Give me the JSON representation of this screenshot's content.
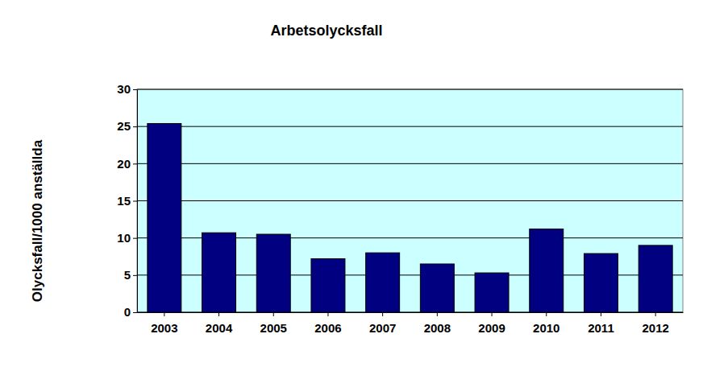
{
  "chart_data": {
    "type": "bar",
    "title": "Arbetsolycksfall",
    "y_label": "Olycksfall/1000 anställda",
    "categories": [
      "2003",
      "2004",
      "2005",
      "2006",
      "2007",
      "2008",
      "2009",
      "2010",
      "2011",
      "2012"
    ],
    "values": [
      25.4,
      10.7,
      10.5,
      7.2,
      8.0,
      6.5,
      5.3,
      11.2,
      7.9,
      9.0
    ],
    "color": "#000080",
    "ylim": [
      0,
      30
    ],
    "yticks": [
      0,
      5,
      10,
      15,
      20,
      25,
      30
    ],
    "grid": true
  }
}
